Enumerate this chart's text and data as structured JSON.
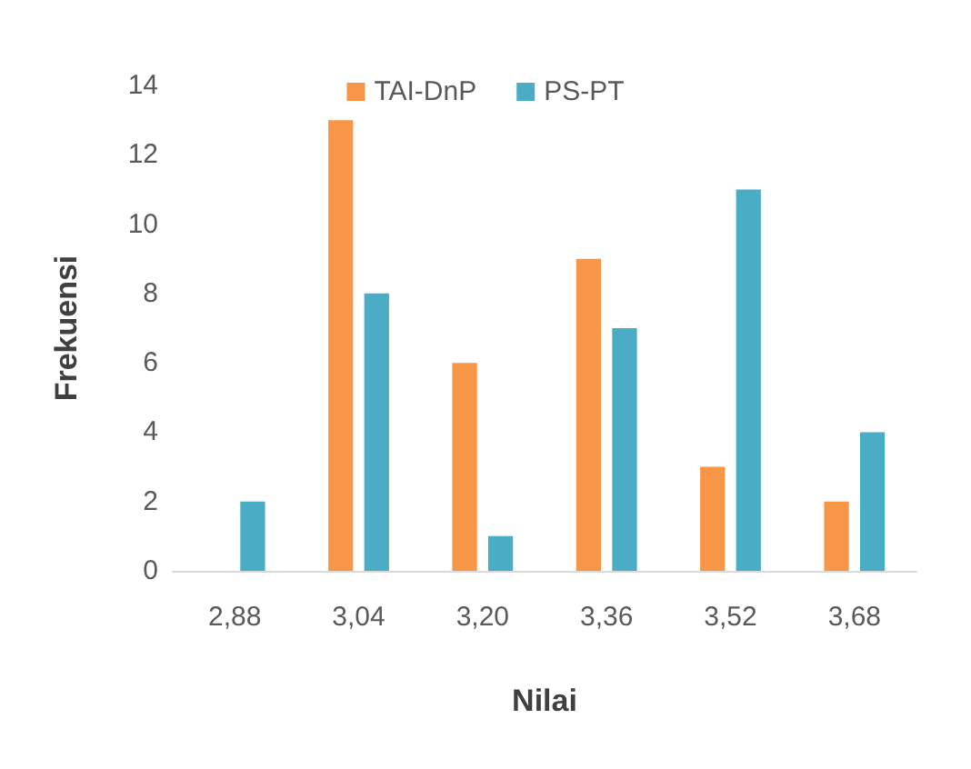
{
  "chart_data": {
    "type": "bar",
    "xlabel": "Nilai",
    "ylabel": "Frekuensi",
    "categories": [
      "2,88",
      "3,04",
      "3,20",
      "3,36",
      "3,52",
      "3,68"
    ],
    "series": [
      {
        "name": "TAI-DnP",
        "color": "#f79646",
        "values": [
          0,
          13,
          6,
          9,
          3,
          2
        ]
      },
      {
        "name": "PS-PT",
        "color": "#4bacc6",
        "values": [
          2,
          8,
          1,
          7,
          11,
          4
        ]
      }
    ],
    "ylim": [
      0,
      14
    ],
    "yticks": [
      0,
      2,
      4,
      6,
      8,
      10,
      12,
      14
    ],
    "grid": false,
    "legend": "top"
  }
}
